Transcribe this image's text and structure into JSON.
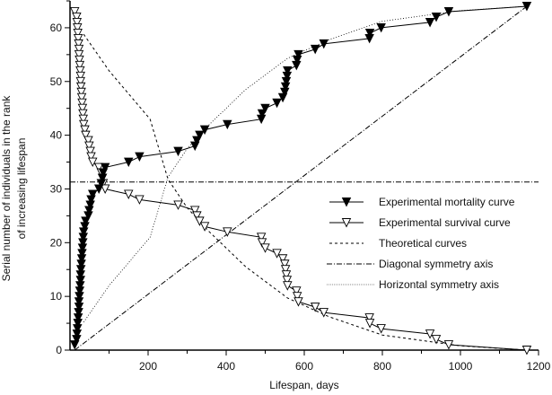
{
  "chart_data": {
    "type": "line",
    "xlabel": "Lifespan, days",
    "ylabel_lines": [
      "Serial number of individuals in the rank",
      "of increasing lifespan"
    ],
    "xlim": [
      0,
      1200
    ],
    "ylim": [
      0,
      65
    ],
    "x_ticks": [
      200,
      400,
      600,
      800,
      1000,
      1200
    ],
    "y_ticks": [
      0,
      10,
      20,
      30,
      40,
      50,
      60
    ],
    "grid": false,
    "legend_position": "right",
    "lifespans": [
      12,
      17,
      18,
      19,
      20,
      21,
      22,
      23,
      23,
      24,
      25,
      26,
      27,
      27,
      28,
      29,
      30,
      31,
      32,
      33,
      34,
      35,
      38,
      40,
      47,
      49,
      52,
      54,
      58,
      74,
      80,
      83,
      85,
      90,
      150,
      178,
      277,
      320,
      325,
      332,
      345,
      403,
      490,
      492,
      500,
      530,
      545,
      550,
      552,
      554,
      556,
      557,
      580,
      582,
      585,
      628,
      650,
      767,
      768,
      797,
      922,
      938,
      970,
      1170
    ],
    "series": [
      {
        "name": "Experimental mortality curve",
        "marker": "filled-down-triangle",
        "y": [
          1,
          2,
          3,
          4,
          5,
          6,
          7,
          8,
          9,
          10,
          11,
          12,
          13,
          14,
          15,
          16,
          17,
          18,
          19,
          20,
          21,
          22,
          23,
          24,
          25,
          26,
          27,
          28,
          29,
          30,
          31,
          32,
          33,
          34,
          35,
          36,
          37,
          38,
          39,
          40,
          41,
          42,
          43,
          44,
          45,
          46,
          47,
          48,
          49,
          50,
          51,
          52,
          53,
          54,
          55,
          56,
          57,
          58,
          59,
          60,
          61,
          62,
          63,
          64
        ]
      },
      {
        "name": "Experimental survival curve",
        "marker": "open-down-triangle",
        "y": [
          63,
          62,
          61,
          60,
          59,
          58,
          57,
          56,
          55,
          54,
          53,
          52,
          51,
          50,
          49,
          48,
          47,
          46,
          45,
          44,
          43,
          42,
          41,
          40,
          39,
          38,
          37,
          36,
          35,
          34,
          33,
          32,
          31,
          30,
          29,
          28,
          27,
          26,
          25,
          24,
          23,
          22,
          21,
          20,
          19,
          18,
          17,
          16,
          15,
          14,
          13,
          12,
          11,
          10,
          9,
          8,
          7,
          6,
          5,
          4,
          3,
          2,
          1,
          0
        ]
      },
      {
        "name": "Theoretical curves",
        "style": "dashed",
        "x": [
          35,
          100,
          205,
          251,
          300,
          357,
          450,
          557,
          664,
          800,
          1000,
          1170
        ],
        "y": [
          58.8,
          52,
          43,
          31.8,
          26.5,
          22,
          15.5,
          9.7,
          6.2,
          2.8,
          0.8,
          0
        ]
      },
      {
        "name": "Theoretical curves",
        "style": "dotted",
        "x": [
          35,
          100,
          205,
          251,
          300,
          357,
          450,
          557,
          664,
          800,
          1000,
          1170
        ],
        "y": [
          5.2,
          12,
          21,
          32.2,
          37.5,
          42,
          48.5,
          54.3,
          57.8,
          61.2,
          63.2,
          64
        ]
      },
      {
        "name": "Diagonal symmetry axis",
        "style": "dash-dot",
        "x": [
          12,
          1170
        ],
        "y": [
          0,
          64
        ]
      },
      {
        "name": "Horizontal symmetry axis",
        "style": "dash-dot",
        "x": [
          0,
          1200
        ],
        "y": [
          31.3,
          31.3
        ]
      }
    ],
    "legend": [
      {
        "label": "Experimental mortality curve",
        "style": "filled"
      },
      {
        "label": "Experimental survival curve",
        "style": "open"
      },
      {
        "label": "Theoretical curves",
        "style": "dashed"
      },
      {
        "label": "Diagonal symmetry axis",
        "style": "dashdot"
      },
      {
        "label": "Horizontal symmetry axis",
        "style": "dotted-gray"
      }
    ],
    "colors": {
      "line": "#000000",
      "horizontal_axis_legend": "#888888"
    }
  }
}
